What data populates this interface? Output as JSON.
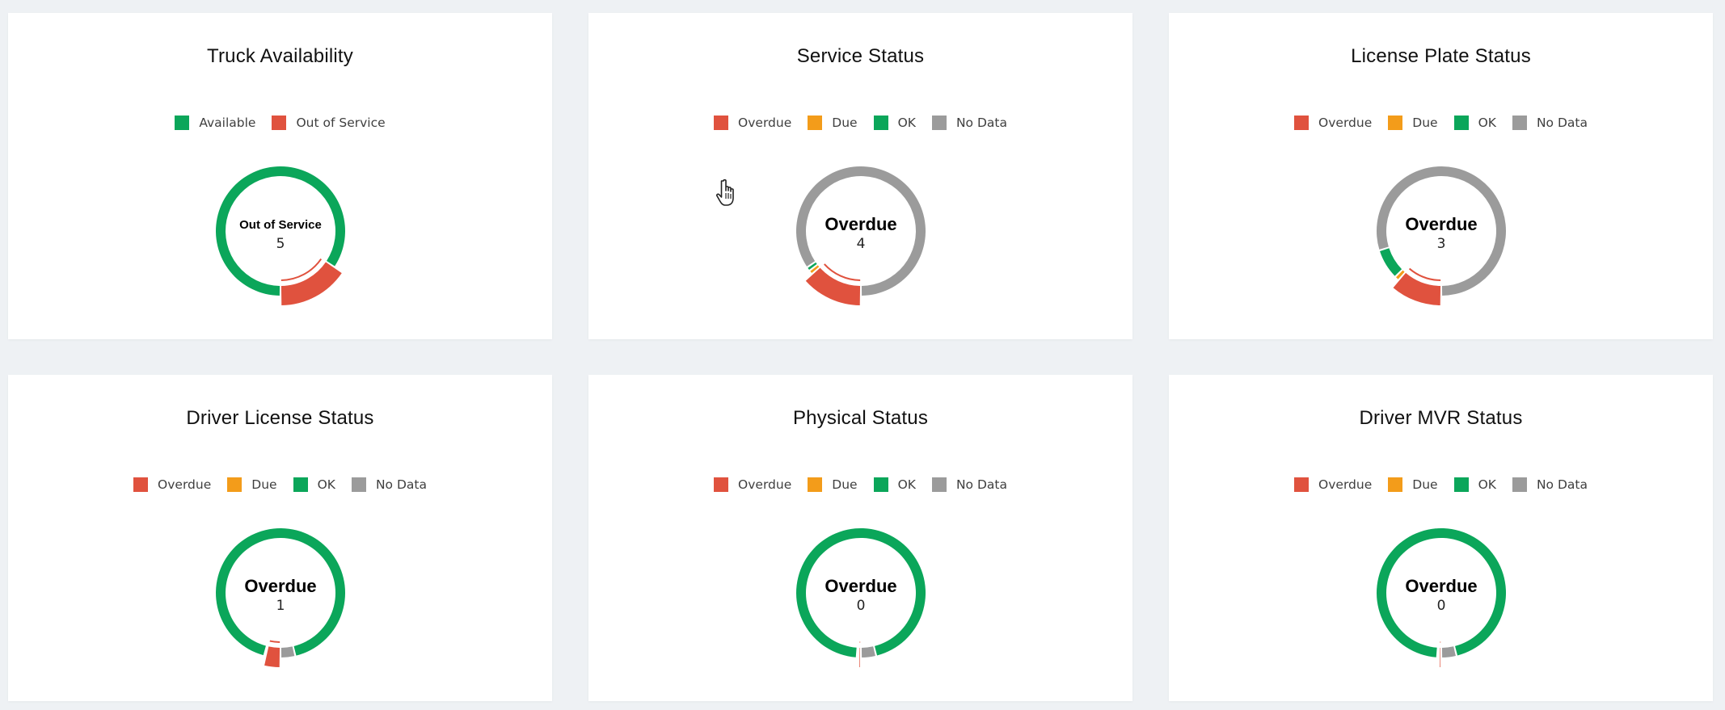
{
  "colors": {
    "overdue": "#e0523e",
    "due": "#f39c1a",
    "ok": "#0ba65a",
    "nodata": "#9b9b9b",
    "available": "#0ba65a",
    "out_of_service": "#e0523e"
  },
  "chart_data": [
    {
      "type": "pie",
      "title": "Truck Availability",
      "legend": [
        "Available",
        "Out of Service"
      ],
      "legend_placement": "top-center",
      "center": {
        "label": "Out of Service",
        "value": "5"
      },
      "values": [
        27,
        5
      ],
      "highlighted": 1
    },
    {
      "type": "pie",
      "title": "Service Status",
      "legend": [
        "Overdue",
        "Due",
        "OK",
        "No Data"
      ],
      "legend_placement": "top-center",
      "center": {
        "label": "Overdue",
        "value": "4"
      },
      "values": [
        4,
        0.3,
        0.3,
        25
      ],
      "highlighted": 0
    },
    {
      "type": "pie",
      "title": "License Plate Status",
      "legend": [
        "Overdue",
        "Due",
        "OK",
        "No Data"
      ],
      "legend_placement": "top-center",
      "center": {
        "label": "Overdue",
        "value": "3"
      },
      "values": [
        3,
        0.3,
        2,
        21
      ],
      "highlighted": 0
    },
    {
      "type": "pie",
      "title": "Driver License Status",
      "legend": [
        "Overdue",
        "Due",
        "OK",
        "No Data"
      ],
      "legend_placement": "top-center",
      "center": {
        "label": "Overdue",
        "value": "1"
      },
      "values": [
        1,
        0.1,
        25,
        1
      ],
      "highlighted": 0
    },
    {
      "type": "pie",
      "title": "Physical Status",
      "legend": [
        "Overdue",
        "Due",
        "OK",
        "No Data"
      ],
      "legend_placement": "top-center",
      "center": {
        "label": "Overdue",
        "value": "0"
      },
      "values": [
        0.15,
        0.12,
        25,
        1
      ],
      "highlighted": 0
    },
    {
      "type": "pie",
      "title": "Driver MVR Status",
      "legend": [
        "Overdue",
        "Due",
        "OK",
        "No Data"
      ],
      "legend_placement": "top-center",
      "center": {
        "label": "Overdue",
        "value": "0"
      },
      "values": [
        0.15,
        0.12,
        25,
        1
      ],
      "highlighted": 0
    }
  ]
}
